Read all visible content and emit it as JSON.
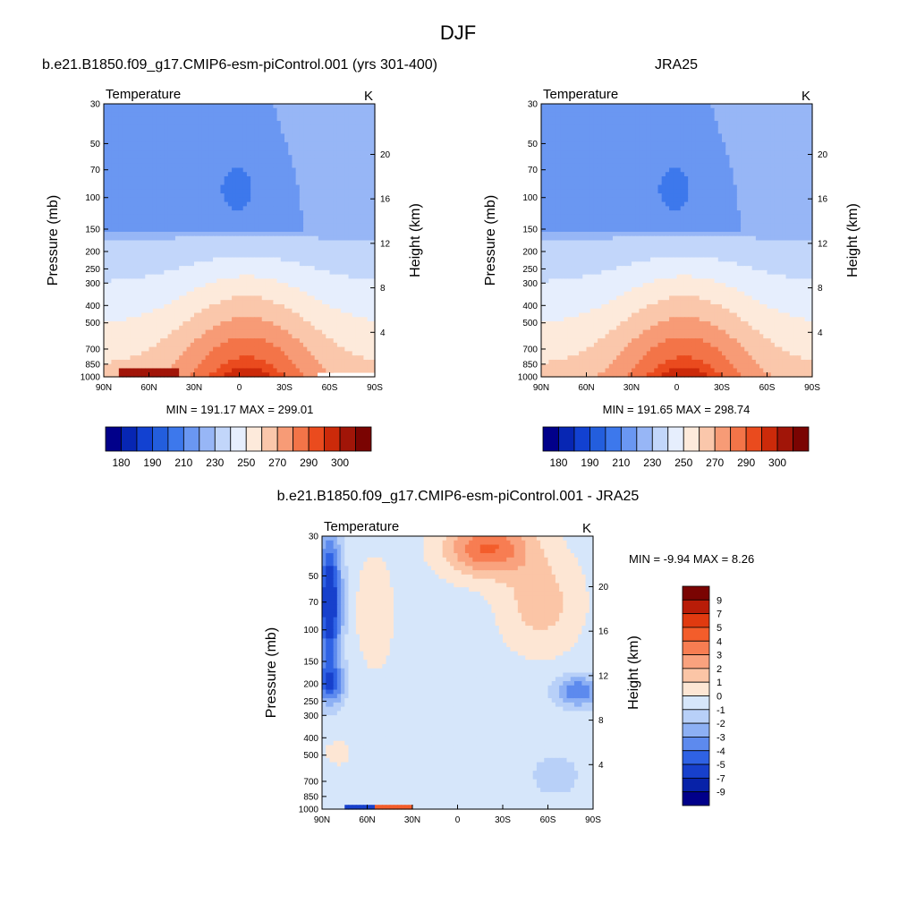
{
  "page_title": "DJF",
  "chart_data": [
    {
      "type": "heatmap",
      "title": "b.e21.B1850.f09_g17.CMIP6-esm-piControl.001 (yrs 301-400)",
      "variable": "Temperature",
      "units": "K",
      "xlabel": "",
      "ylabel": "Pressure (mb)",
      "y2label": "Height (km)",
      "x_ticks": [
        "90N",
        "60N",
        "30N",
        "0",
        "30S",
        "60S",
        "90S"
      ],
      "y_ticks": [
        30,
        50,
        70,
        100,
        150,
        200,
        250,
        300,
        400,
        500,
        700,
        850,
        1000
      ],
      "y_scale": "log",
      "y_reversed": true,
      "y2_ticks": [
        20,
        16,
        12,
        8,
        4
      ],
      "min": 191.17,
      "max": 299.01,
      "stats_text": "MIN = 191.17  MAX = 299.01",
      "colorbar": {
        "orientation": "horizontal",
        "levels": [
          180,
          185,
          190,
          200,
          210,
          220,
          230,
          240,
          250,
          260,
          270,
          280,
          290,
          295,
          300
        ],
        "labels": [
          "180",
          "190",
          "210",
          "230",
          "250",
          "270",
          "290",
          "300"
        ]
      }
    },
    {
      "type": "heatmap",
      "title": "JRA25",
      "variable": "Temperature",
      "units": "K",
      "xlabel": "",
      "ylabel": "Pressure (mb)",
      "y2label": "Height (km)",
      "x_ticks": [
        "90N",
        "60N",
        "30N",
        "0",
        "30S",
        "60S",
        "90S"
      ],
      "y_ticks": [
        30,
        50,
        70,
        100,
        150,
        200,
        250,
        300,
        400,
        500,
        700,
        850,
        1000
      ],
      "y_scale": "log",
      "y_reversed": true,
      "y2_ticks": [
        20,
        16,
        12,
        8,
        4
      ],
      "min": 191.65,
      "max": 298.74,
      "stats_text": "MIN = 191.65  MAX = 298.74",
      "colorbar": {
        "orientation": "horizontal",
        "levels": [
          180,
          185,
          190,
          200,
          210,
          220,
          230,
          240,
          250,
          260,
          270,
          280,
          290,
          295,
          300
        ],
        "labels": [
          "180",
          "190",
          "210",
          "230",
          "250",
          "270",
          "290",
          "300"
        ]
      }
    },
    {
      "type": "heatmap",
      "title": "b.e21.B1850.f09_g17.CMIP6-esm-piControl.001 - JRA25",
      "variable": "Temperature",
      "units": "K",
      "xlabel": "",
      "ylabel": "Pressure (mb)",
      "y2label": "Height (km)",
      "x_ticks": [
        "90N",
        "60N",
        "30N",
        "0",
        "30S",
        "60S",
        "90S"
      ],
      "y_ticks": [
        30,
        50,
        70,
        100,
        150,
        200,
        250,
        300,
        400,
        500,
        700,
        850,
        1000
      ],
      "y_scale": "log",
      "y_reversed": true,
      "y2_ticks": [
        20,
        16,
        12,
        8,
        4
      ],
      "min": -9.94,
      "max": 8.26,
      "stats_text": "MIN =  -9.94  MAX =   8.26",
      "colorbar": {
        "orientation": "vertical",
        "levels": [
          9,
          7,
          5,
          4,
          3,
          2,
          1,
          0,
          -1,
          -2,
          -3,
          -4,
          -5,
          -7,
          -9
        ],
        "labels": [
          "9",
          "7",
          "5",
          "4",
          "3",
          "2",
          "1",
          "0",
          "-1",
          "-2",
          "-3",
          "-4",
          "-5",
          "-7",
          "-9"
        ]
      }
    }
  ],
  "colors": {
    "temperature_fills": [
      "#01008a",
      "#0726b3",
      "#1241d1",
      "#235edd",
      "#3d78ec",
      "#6a97f2",
      "#97b6f6",
      "#c2d6fa",
      "#e6eefd",
      "#fdeadb",
      "#fac7ab",
      "#f79b76",
      "#f37448",
      "#ea4b1e",
      "#cc2a0a",
      "#a11508",
      "#7a0402"
    ],
    "difference_fills": [
      "#7a0402",
      "#b81c08",
      "#e03a10",
      "#f35d2b",
      "#f77d52",
      "#f9a27e",
      "#fbc5a6",
      "#fde6d4",
      "#d6e6fa",
      "#b8d0f8",
      "#8db0f4",
      "#5d8aee",
      "#2f62e4",
      "#1740cc",
      "#0722a8",
      "#01008a"
    ]
  }
}
